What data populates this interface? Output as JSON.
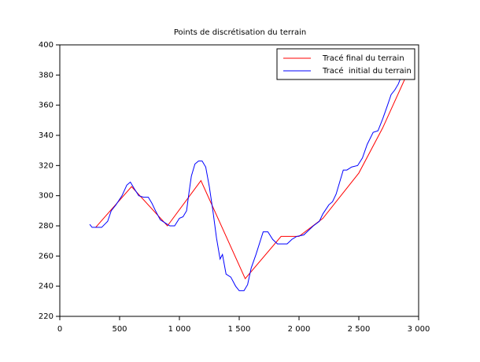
{
  "chart_data": {
    "type": "line",
    "title": "Points de discrétisation du terrain",
    "xlim": [
      0,
      3000
    ],
    "ylim": [
      220,
      400
    ],
    "xticks": [
      0,
      500,
      {
        "value": 1000,
        "label": "1 000"
      },
      {
        "value": 1500,
        "label": "1 500"
      },
      {
        "value": 2000,
        "label": "2 000"
      },
      {
        "value": 2500,
        "label": "2 500"
      },
      {
        "value": 3000,
        "label": "3 000"
      }
    ],
    "yticks": [
      220,
      240,
      260,
      280,
      300,
      320,
      340,
      360,
      380,
      400
    ],
    "legend": "upper right",
    "series": [
      {
        "name": "Tracé final du terrain",
        "color": "#ff0000",
        "x": [
          300,
          600,
          900,
          1180,
          1550,
          1850,
          2000,
          2200,
          2500,
          2700,
          2900
        ],
        "values": [
          279,
          306,
          280,
          310,
          245,
          273,
          273,
          285,
          315,
          345,
          380
        ]
      },
      {
        "name": "Tracé  initial du terrain",
        "color": "#0000ff",
        "x": [
          250,
          270,
          350,
          400,
          430,
          470,
          520,
          560,
          590,
          620,
          660,
          700,
          740,
          770,
          800,
          840,
          880,
          920,
          960,
          1000,
          1030,
          1060,
          1080,
          1100,
          1130,
          1160,
          1190,
          1220,
          1250,
          1280,
          1310,
          1340,
          1360,
          1390,
          1430,
          1470,
          1500,
          1540,
          1570,
          1600,
          1640,
          1680,
          1700,
          1740,
          1780,
          1820,
          1860,
          1900,
          1940,
          1980,
          2040,
          2080,
          2120,
          2170,
          2200,
          2250,
          2280,
          2310,
          2340,
          2370,
          2400,
          2440,
          2490,
          2530,
          2570,
          2620,
          2660,
          2700,
          2740,
          2770,
          2800,
          2830,
          2860,
          2880
        ],
        "values": [
          281,
          279,
          279,
          283,
          290,
          294,
          300,
          307,
          309,
          305,
          300,
          299,
          299,
          295,
          290,
          284,
          282,
          280,
          280,
          285,
          286,
          290,
          302,
          313,
          321,
          323,
          323,
          319,
          306,
          290,
          272,
          258,
          261,
          248,
          246,
          240,
          237,
          237,
          241,
          252,
          261,
          271,
          276,
          276,
          271,
          268,
          268,
          268,
          271,
          273,
          274,
          277,
          280,
          283,
          288,
          294,
          296,
          301,
          309,
          317,
          317,
          319,
          320,
          325,
          334,
          342,
          343,
          351,
          360,
          367,
          370,
          374,
          380,
          380
        ]
      }
    ]
  }
}
